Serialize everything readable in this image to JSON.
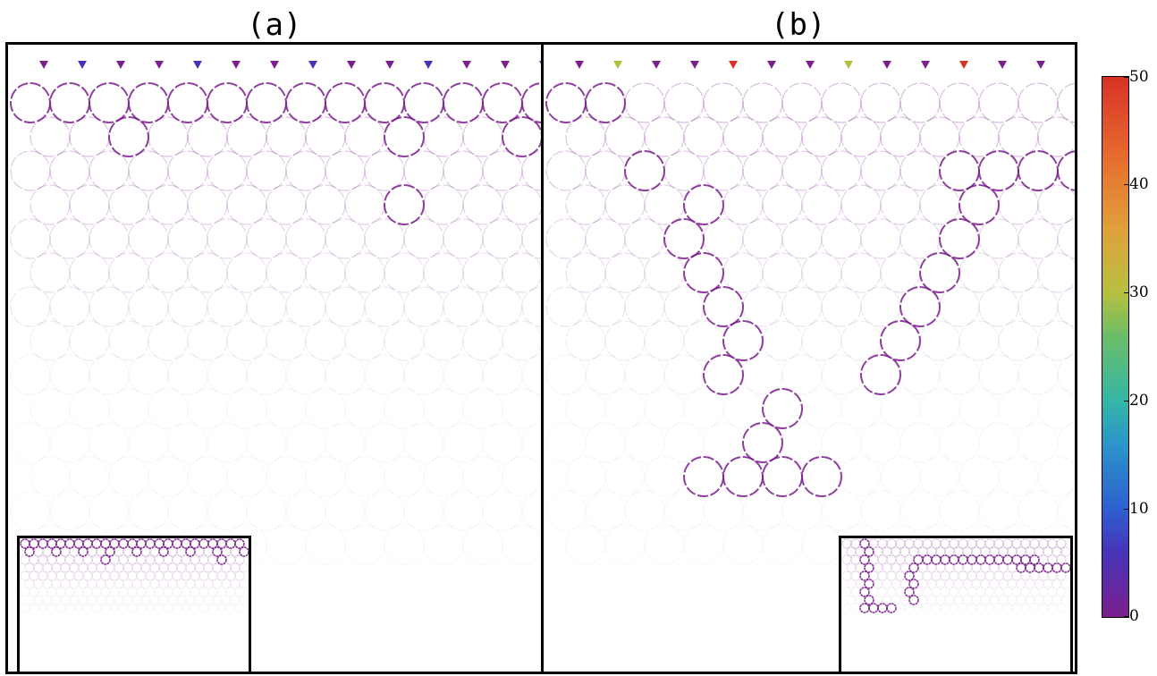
{
  "panels": [
    {
      "label": "(a)"
    },
    {
      "label": "(b)"
    }
  ],
  "colorbar": {
    "ticks": [
      "50",
      "40",
      "30",
      "20",
      "10",
      "0"
    ],
    "colors": [
      "#7b1f8e",
      "#4634b8",
      "#2b95c9",
      "#6cbd68",
      "#b6c03f",
      "#e7702f",
      "#d83227"
    ]
  }
}
